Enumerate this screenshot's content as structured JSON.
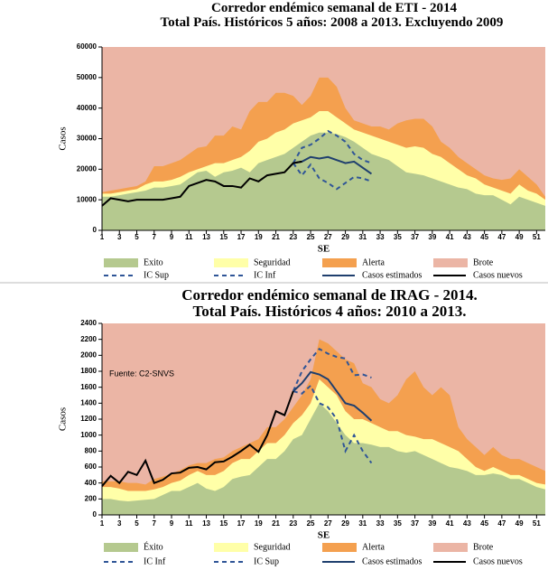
{
  "chart_data": [
    {
      "type": "area",
      "title": "Corredor endémico semanal de ETI - 2014",
      "subtitle": "Total País. Históricos 5 años: 2008 a 2013. Excluyendo 2009",
      "x_label": "SE",
      "y_label": "Casos",
      "x": [
        1,
        2,
        3,
        4,
        5,
        6,
        7,
        8,
        9,
        10,
        11,
        12,
        13,
        14,
        15,
        16,
        17,
        18,
        19,
        20,
        21,
        22,
        23,
        24,
        25,
        26,
        27,
        28,
        29,
        30,
        31,
        32,
        33,
        34,
        35,
        36,
        37,
        38,
        39,
        40,
        41,
        42,
        43,
        44,
        45,
        46,
        47,
        48,
        49,
        50,
        51,
        52
      ],
      "xlim": [
        1,
        52
      ],
      "xticks": [
        1,
        3,
        5,
        7,
        9,
        11,
        13,
        15,
        17,
        19,
        21,
        23,
        25,
        27,
        29,
        31,
        33,
        35,
        37,
        39,
        41,
        43,
        45,
        47,
        49,
        51
      ],
      "ylim": [
        0,
        60000
      ],
      "yticks": [
        0,
        10000,
        20000,
        30000,
        40000,
        50000,
        60000
      ],
      "series": [
        {
          "name": "Exito",
          "kind": "area",
          "color": "#b5c98f",
          "values": [
            11000,
            11000,
            11500,
            12000,
            12500,
            13000,
            14000,
            14000,
            14500,
            15000,
            17000,
            19000,
            19500,
            17500,
            19000,
            19500,
            20500,
            19000,
            22000,
            23000,
            24000,
            25000,
            27000,
            29000,
            31000,
            32000,
            32000,
            31500,
            30500,
            29000,
            27000,
            25000,
            24000,
            23000,
            21000,
            19000,
            18500,
            18000,
            17000,
            16000,
            15000,
            14000,
            13500,
            12000,
            11500,
            11500,
            10000,
            8500,
            11000,
            10000,
            9000,
            8000
          ]
        },
        {
          "name": "Seguridad",
          "kind": "area",
          "color": "#ffffa8",
          "values": [
            12000,
            12000,
            12500,
            13000,
            13500,
            15000,
            16000,
            16000,
            16500,
            17500,
            19000,
            20000,
            21000,
            22000,
            22000,
            23000,
            24000,
            26000,
            29000,
            30000,
            32000,
            33000,
            35000,
            36000,
            37000,
            39000,
            39000,
            37000,
            35000,
            33000,
            32000,
            31000,
            30000,
            29000,
            28000,
            27000,
            27500,
            27000,
            25000,
            24000,
            22000,
            20000,
            18000,
            17000,
            15000,
            14000,
            13000,
            12000,
            15000,
            13000,
            12000,
            10000
          ]
        },
        {
          "name": "Alerta",
          "kind": "area",
          "color": "#f4a04f",
          "values": [
            12500,
            13000,
            13500,
            14000,
            14500,
            16000,
            21000,
            21000,
            22000,
            23000,
            25000,
            27000,
            27500,
            31000,
            31000,
            34000,
            33000,
            39000,
            42000,
            42000,
            45000,
            45000,
            44000,
            41000,
            44000,
            50000,
            50000,
            47000,
            40000,
            36000,
            35000,
            34000,
            34000,
            33000,
            35000,
            36000,
            36500,
            36500,
            34000,
            29000,
            27000,
            24000,
            22000,
            20000,
            18000,
            17000,
            16500,
            17000,
            20000,
            17500,
            15000,
            11000
          ]
        },
        {
          "name": "Brote",
          "kind": "area",
          "color": "#ebb5a5"
        },
        {
          "name": "IC Sup",
          "kind": "line",
          "dashed": true,
          "color": "#2f5597",
          "values": [
            null,
            null,
            null,
            null,
            null,
            null,
            null,
            null,
            null,
            null,
            null,
            null,
            null,
            null,
            null,
            null,
            null,
            null,
            null,
            null,
            null,
            null,
            22000,
            27000,
            28000,
            30000,
            32500,
            31000,
            29000,
            25000,
            23000,
            22000,
            null,
            null,
            null,
            null,
            null,
            null,
            null,
            null,
            null,
            null,
            null,
            null,
            null,
            null,
            null,
            null,
            null,
            null,
            null,
            null
          ]
        },
        {
          "name": "IC Inf",
          "kind": "line",
          "dashed": true,
          "color": "#2f5597",
          "values": [
            null,
            null,
            null,
            null,
            null,
            null,
            null,
            null,
            null,
            null,
            null,
            null,
            null,
            null,
            null,
            null,
            null,
            null,
            null,
            null,
            null,
            null,
            22000,
            18000,
            21500,
            17000,
            15500,
            13500,
            15500,
            17500,
            17000,
            16000,
            null,
            null,
            null,
            null,
            null,
            null,
            null,
            null,
            null,
            null,
            null,
            null,
            null,
            null,
            null,
            null,
            null,
            null,
            null,
            null
          ]
        },
        {
          "name": "Casos estimados",
          "kind": "line",
          "color": "#1f3f6e",
          "values": [
            null,
            null,
            null,
            null,
            null,
            null,
            null,
            null,
            null,
            null,
            null,
            null,
            null,
            null,
            null,
            null,
            null,
            null,
            null,
            null,
            null,
            null,
            22000,
            22500,
            24000,
            23500,
            24000,
            23000,
            22000,
            22500,
            20500,
            18500,
            null,
            null,
            null,
            null,
            null,
            null,
            null,
            null,
            null,
            null,
            null,
            null,
            null,
            null,
            null,
            null,
            null,
            null,
            null,
            null
          ]
        },
        {
          "name": "Casos nuevos",
          "kind": "line",
          "color": "#000000",
          "values": [
            8000,
            10500,
            10000,
            9500,
            10000,
            10000,
            10000,
            10000,
            10500,
            11000,
            14500,
            15500,
            16500,
            16000,
            14500,
            14500,
            14000,
            17000,
            16000,
            18000,
            18500,
            19000,
            22000,
            22500,
            null,
            null,
            null,
            null,
            null,
            null,
            null,
            null,
            null,
            null,
            null,
            null,
            null,
            null,
            null,
            null,
            null,
            null,
            null,
            null,
            null,
            null,
            null,
            null,
            null,
            null,
            null,
            null
          ]
        }
      ]
    },
    {
      "type": "area",
      "title": "Corredor endémico semanal de IRAG - 2014.",
      "subtitle": "Total País. Históricos 4 años: 2010 a 2013.",
      "x_label": "SE",
      "y_label": "Casos",
      "annotation": "Fuente: C2-SNVS",
      "x": [
        1,
        2,
        3,
        4,
        5,
        6,
        7,
        8,
        9,
        10,
        11,
        12,
        13,
        14,
        15,
        16,
        17,
        18,
        19,
        20,
        21,
        22,
        23,
        24,
        25,
        26,
        27,
        28,
        29,
        30,
        31,
        32,
        33,
        34,
        35,
        36,
        37,
        38,
        39,
        40,
        41,
        42,
        43,
        44,
        45,
        46,
        47,
        48,
        49,
        50,
        51,
        52
      ],
      "xlim": [
        1,
        52
      ],
      "xticks": [
        1,
        3,
        5,
        7,
        9,
        11,
        13,
        15,
        17,
        19,
        21,
        23,
        25,
        27,
        29,
        31,
        33,
        35,
        37,
        39,
        41,
        43,
        45,
        47,
        49,
        51
      ],
      "ylim": [
        0,
        2400
      ],
      "yticks": [
        0,
        200,
        400,
        600,
        800,
        1000,
        1200,
        1400,
        1600,
        1800,
        2000,
        2200,
        2400
      ],
      "series": [
        {
          "name": "Éxito",
          "kind": "area",
          "color": "#b5c98f",
          "values": [
            200,
            200,
            180,
            170,
            180,
            190,
            200,
            250,
            300,
            300,
            350,
            400,
            330,
            300,
            350,
            450,
            480,
            500,
            600,
            700,
            700,
            800,
            950,
            1000,
            1200,
            1400,
            1300,
            1150,
            1000,
            900,
            900,
            880,
            850,
            850,
            800,
            780,
            800,
            750,
            700,
            650,
            600,
            580,
            550,
            500,
            500,
            520,
            500,
            450,
            450,
            400,
            350,
            320
          ]
        },
        {
          "name": "Seguridad",
          "kind": "area",
          "color": "#ffffa8",
          "values": [
            350,
            350,
            330,
            300,
            300,
            300,
            320,
            350,
            400,
            430,
            500,
            550,
            500,
            500,
            550,
            650,
            700,
            700,
            800,
            900,
            900,
            1000,
            1150,
            1250,
            1400,
            1700,
            1600,
            1500,
            1300,
            1200,
            1200,
            1150,
            1100,
            1050,
            1050,
            1000,
            980,
            950,
            950,
            900,
            850,
            800,
            700,
            600,
            550,
            600,
            550,
            500,
            500,
            450,
            400,
            380
          ]
        },
        {
          "name": "Alerta",
          "kind": "area",
          "color": "#f4a04f",
          "values": [
            420,
            420,
            420,
            400,
            400,
            380,
            450,
            480,
            520,
            560,
            620,
            650,
            650,
            700,
            720,
            800,
            850,
            900,
            950,
            1100,
            1100,
            1200,
            1350,
            1500,
            1700,
            2200,
            2150,
            2050,
            1950,
            1900,
            1650,
            1600,
            1450,
            1400,
            1500,
            1700,
            1800,
            1600,
            1500,
            1600,
            1500,
            1100,
            950,
            850,
            750,
            850,
            750,
            700,
            700,
            650,
            600,
            550
          ]
        },
        {
          "name": "Brote",
          "kind": "area",
          "color": "#ebb5a5"
        },
        {
          "name": "IC Inf",
          "kind": "line",
          "dashed": true,
          "color": "#2f5597",
          "values": [
            null,
            null,
            null,
            null,
            null,
            null,
            null,
            null,
            null,
            null,
            null,
            null,
            null,
            null,
            null,
            null,
            null,
            null,
            null,
            null,
            null,
            null,
            1550,
            1520,
            1620,
            1400,
            1350,
            1200,
            800,
            1000,
            800,
            650,
            null,
            null,
            null,
            null,
            null,
            null,
            null,
            null,
            null,
            null,
            null,
            null,
            null,
            null,
            null,
            null,
            null,
            null,
            null,
            null
          ]
        },
        {
          "name": "IC Sup",
          "kind": "line",
          "dashed": true,
          "color": "#2f5597",
          "values": [
            null,
            null,
            null,
            null,
            null,
            null,
            null,
            null,
            null,
            null,
            null,
            null,
            null,
            null,
            null,
            null,
            null,
            null,
            null,
            null,
            null,
            null,
            1550,
            1800,
            1950,
            2080,
            2020,
            1980,
            1960,
            1750,
            1760,
            1720,
            null,
            null,
            null,
            null,
            null,
            null,
            null,
            null,
            null,
            null,
            null,
            null,
            null,
            null,
            null,
            null,
            null,
            null,
            null,
            null
          ]
        },
        {
          "name": "Casos estimados",
          "kind": "line",
          "color": "#1f3f6e",
          "values": [
            null,
            null,
            null,
            null,
            null,
            null,
            null,
            null,
            null,
            null,
            null,
            null,
            null,
            null,
            null,
            null,
            null,
            null,
            null,
            null,
            null,
            null,
            1550,
            1650,
            1790,
            1760,
            1700,
            1550,
            1400,
            1370,
            1280,
            1180,
            null,
            null,
            null,
            null,
            null,
            null,
            null,
            null,
            null,
            null,
            null,
            null,
            null,
            null,
            null,
            null,
            null,
            null,
            null,
            null
          ]
        },
        {
          "name": "Casos nuevos",
          "kind": "line",
          "color": "#000000",
          "values": [
            360,
            490,
            400,
            540,
            500,
            680,
            400,
            440,
            520,
            530,
            590,
            600,
            570,
            660,
            670,
            730,
            800,
            880,
            790,
            1000,
            1300,
            1250,
            1550,
            null,
            null,
            null,
            null,
            null,
            null,
            null,
            null,
            null,
            null,
            null,
            null,
            null,
            null,
            null,
            null,
            null,
            null,
            null,
            null,
            null,
            null,
            null,
            null,
            null,
            null,
            null,
            null,
            null
          ]
        }
      ]
    }
  ]
}
